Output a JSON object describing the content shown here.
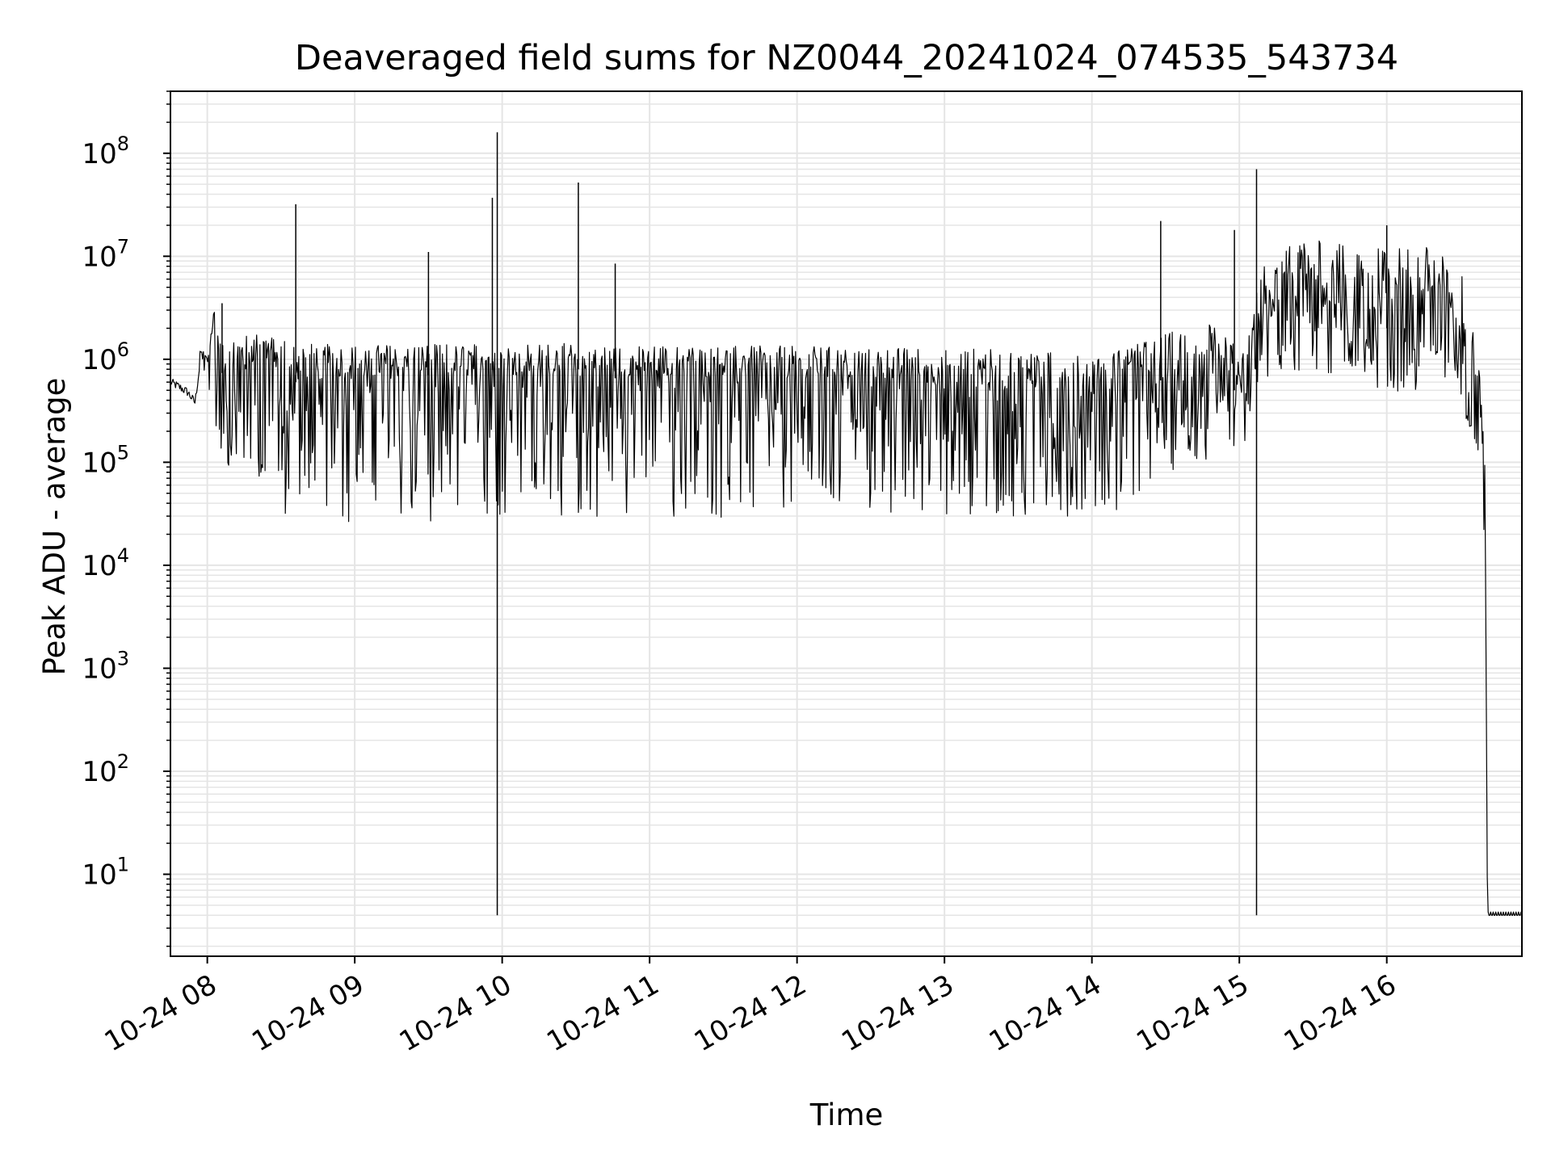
{
  "chart_data": {
    "type": "line",
    "title": "Deaveraged field sums for NZ0044_20241024_074535_543734",
    "xlabel": "Time",
    "ylabel": "Peak ADU - average",
    "yscale": "log",
    "grid": true,
    "line_color": "#000000",
    "grid_color": "#e5e5e5",
    "xlim": [
      "2024-10-24 07:45",
      "2024-10-24 16:55"
    ],
    "ylim": [
      1.6,
      400000000
    ],
    "x_ticks": [
      "2024-10-24 08:00",
      "2024-10-24 09:00",
      "2024-10-24 10:00",
      "2024-10-24 11:00",
      "2024-10-24 12:00",
      "2024-10-24 13:00",
      "2024-10-24 14:00",
      "2024-10-24 15:00",
      "2024-10-24 16:00"
    ],
    "x_tick_labels": [
      "10-24 08",
      "10-24 09",
      "10-24 10",
      "10-24 11",
      "10-24 12",
      "10-24 13",
      "10-24 14",
      "10-24 15",
      "10-24 16"
    ],
    "y_ticks": [
      10,
      100,
      1000,
      10000,
      100000,
      1000000,
      10000000,
      100000000
    ],
    "y_tick_exponents": [
      "1",
      "2",
      "3",
      "4",
      "5",
      "6",
      "7",
      "8"
    ],
    "y_tick_base": "10",
    "series": [
      {
        "name": "",
        "x": [
          "2024-10-24 07:45",
          "2024-10-24 07:48",
          "2024-10-24 07:52",
          "2024-10-24 07:55",
          "2024-10-24 07:57",
          "2024-10-24 07:58",
          "2024-10-24 08:00",
          "2024-10-24 08:03",
          "2024-10-24 08:05",
          "2024-10-24 08:10",
          "2024-10-24 08:15",
          "2024-10-24 08:20",
          "2024-10-24 08:30",
          "2024-10-24 08:36",
          "2024-10-24 08:45",
          "2024-10-24 09:00",
          "2024-10-24 09:15",
          "2024-10-24 09:30",
          "2024-10-24 09:45",
          "2024-10-24 09:57",
          "2024-10-24 09:58",
          "2024-10-24 10:05",
          "2024-10-24 10:20",
          "2024-10-24 10:31",
          "2024-10-24 10:45",
          "2024-10-24 11:00",
          "2024-10-24 11:30",
          "2024-10-24 12:00",
          "2024-10-24 12:30",
          "2024-10-24 13:00",
          "2024-10-24 13:30",
          "2024-10-24 14:00",
          "2024-10-24 14:15",
          "2024-10-24 14:30",
          "2024-10-24 14:45",
          "2024-10-24 15:00",
          "2024-10-24 15:05",
          "2024-10-24 15:06",
          "2024-10-24 15:08",
          "2024-10-24 15:15",
          "2024-10-24 15:30",
          "2024-10-24 15:45",
          "2024-10-24 16:00",
          "2024-10-24 16:15",
          "2024-10-24 16:30",
          "2024-10-24 16:35",
          "2024-10-24 16:38",
          "2024-10-24 16:40",
          "2024-10-24 16:41",
          "2024-10-24 16:55"
        ],
        "y": [
          600000,
          550000,
          480000,
          380000,
          900000,
          1200000,
          800000,
          2500000,
          700000,
          900000,
          700000,
          1000000,
          900000,
          600000,
          700000,
          600000,
          650000,
          700000,
          650000,
          800000,
          800000,
          700000,
          700000,
          800000,
          650000,
          700000,
          650000,
          650000,
          600000,
          550000,
          500000,
          450000,
          800000,
          600000,
          500000,
          500000,
          700000,
          900000,
          2000000,
          4000000,
          5000000,
          3000000,
          2000000,
          4000000,
          2000000,
          900000,
          300000,
          50000,
          4,
          4
        ],
        "envelope_max": [
          700000,
          600000,
          520000,
          420000,
          1200000,
          1300000,
          1100000,
          3500000,
          1500000,
          1800000,
          1700000,
          1800000,
          1600000,
          1500000,
          1400000,
          1400000,
          1400000,
          1400000,
          1400000,
          1450000,
          1400000,
          1400000,
          1450000,
          1400000,
          1350000,
          1350000,
          1350000,
          1350000,
          1300000,
          1300000,
          1250000,
          1100000,
          1300000,
          1800000,
          2500000,
          1300000,
          2000000,
          3500000,
          7000000,
          12000000,
          15000000,
          13000000,
          12000000,
          13000000,
          8000000,
          2000000,
          700000,
          100000,
          4,
          4
        ],
        "envelope_min": [
          500000,
          480000,
          420000,
          330000,
          700000,
          500000,
          300000,
          250000,
          150000,
          60000,
          40000,
          35000,
          30000,
          28000,
          26000,
          25000,
          25000,
          26000,
          28000,
          30000,
          30000,
          30000,
          30000,
          28000,
          30000,
          28000,
          28000,
          30000,
          30000,
          30000,
          30000,
          30000,
          35000,
          80000,
          100000,
          60000,
          400000,
          500000,
          600000,
          700000,
          800000,
          600000,
          500000,
          400000,
          300000,
          200000,
          80000,
          10000,
          4,
          4
        ]
      }
    ],
    "spikes": [
      {
        "x": "2024-10-24 08:06",
        "y": 3500000
      },
      {
        "x": "2024-10-24 08:36",
        "y": 32000000
      },
      {
        "x": "2024-10-24 09:30",
        "y": 11000000
      },
      {
        "x": "2024-10-24 09:56",
        "y": 37000000
      },
      {
        "x": "2024-10-24 09:58",
        "y": 160000000
      },
      {
        "x": "2024-10-24 10:31",
        "y": 52000000
      },
      {
        "x": "2024-10-24 10:46",
        "y": 8500000
      },
      {
        "x": "2024-10-24 14:28",
        "y": 22000000
      },
      {
        "x": "2024-10-24 14:58",
        "y": 18000000
      },
      {
        "x": "2024-10-24 15:07",
        "y": 70000000
      },
      {
        "x": "2024-10-24 16:00",
        "y": 20000000
      }
    ],
    "dips": [
      {
        "x": "2024-10-24 09:58",
        "y": 4
      },
      {
        "x": "2024-10-24 15:07",
        "y": 4
      }
    ]
  }
}
